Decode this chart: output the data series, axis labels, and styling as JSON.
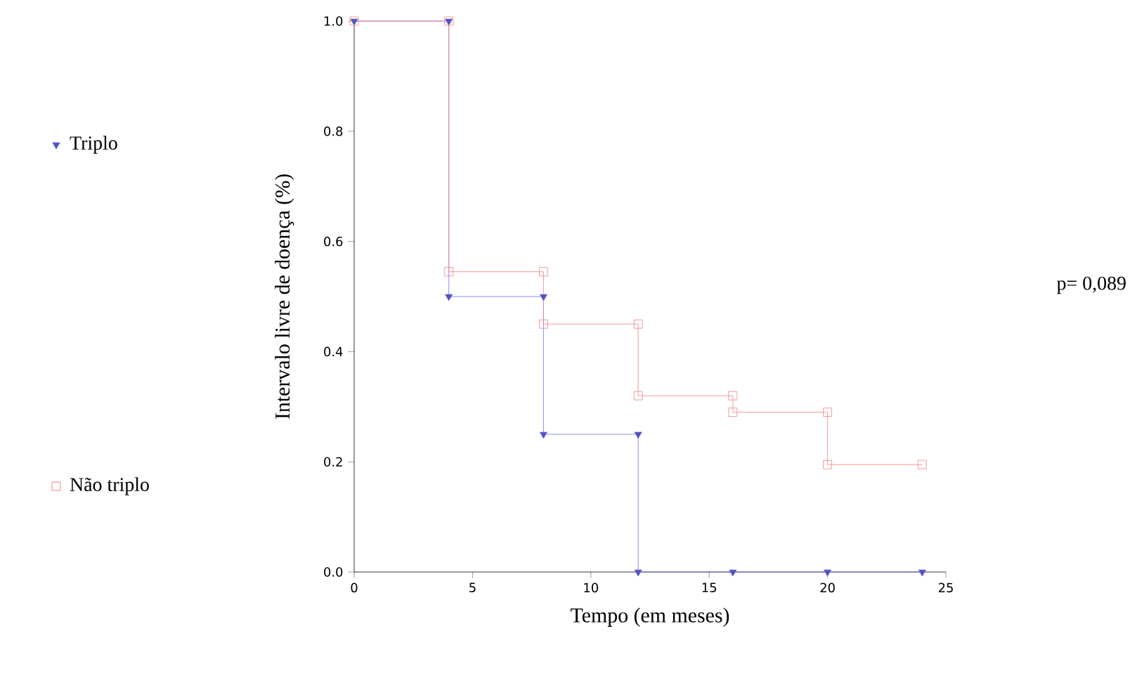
{
  "chart_data": {
    "type": "line",
    "xlabel": "Tempo (em meses)",
    "ylabel": "Intervalo livre de doença (%)",
    "series": [
      {
        "name": "Triplo",
        "color": "#7070f0",
        "marker": "triangle",
        "x": [
          0,
          4,
          4,
          8,
          8,
          12,
          12,
          16,
          20,
          24
        ],
        "values": [
          1.0,
          1.0,
          0.5,
          0.5,
          0.25,
          0.25,
          0,
          0,
          0,
          0
        ]
      },
      {
        "name": "Não triplo",
        "color": "#f08080",
        "marker": "square",
        "x": [
          0,
          4,
          4,
          8,
          8,
          12,
          12,
          16,
          16,
          20,
          20,
          24
        ],
        "values": [
          1.0,
          1.0,
          0.545,
          0.545,
          0.45,
          0.45,
          0.32,
          0.32,
          0.29,
          0.29,
          0.195,
          0.195
        ]
      }
    ],
    "xlim": [
      0,
      25
    ],
    "xticks": [
      0,
      5,
      10,
      15,
      20,
      25
    ],
    "ylim": [
      0,
      1
    ],
    "yticks": [
      {
        "value": 0,
        "label": "0.0"
      },
      {
        "value": 0.2,
        "label": "0.2"
      },
      {
        "value": 0.4,
        "label": "0.4"
      },
      {
        "value": 0.6,
        "label": "0.6"
      },
      {
        "value": 0.8,
        "label": "0.8"
      },
      {
        "value": 1,
        "label": "1.0"
      }
    ],
    "legend": "left",
    "grid": false,
    "annotations": [
      "p= 0,089"
    ]
  }
}
